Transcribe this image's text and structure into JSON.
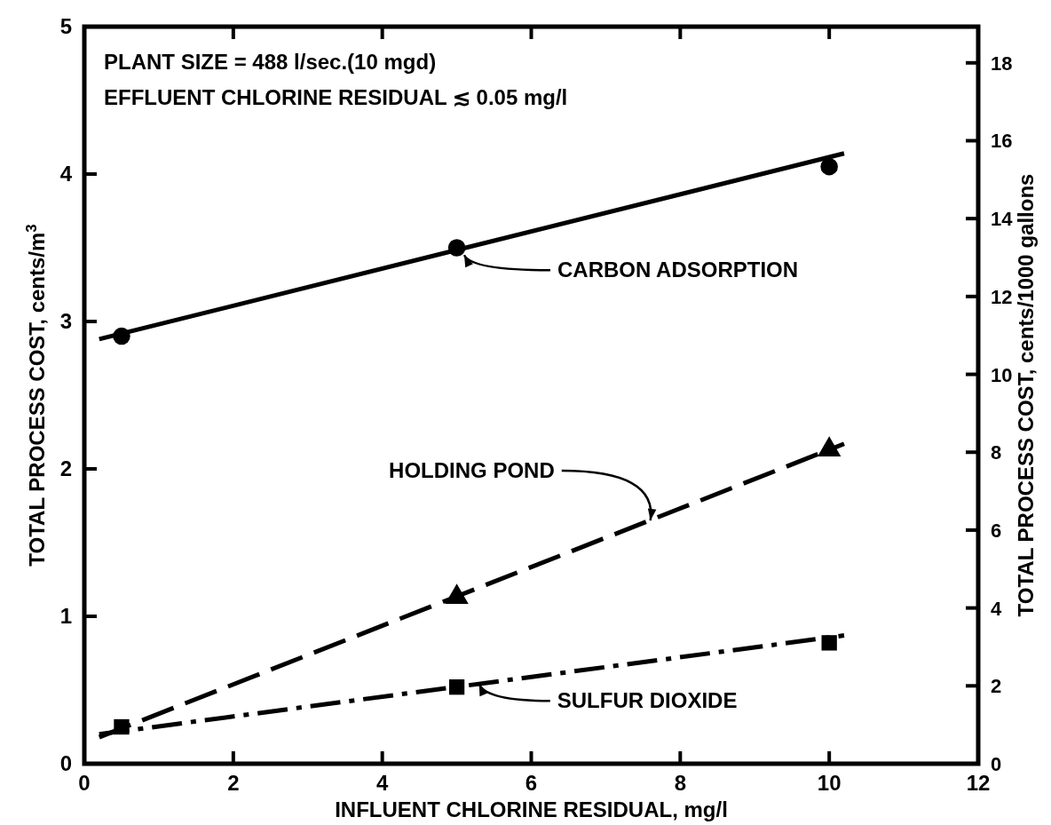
{
  "chart_data": {
    "type": "scatter",
    "xlabel": "INFLUENT CHLORINE RESIDUAL, mg/l",
    "ylabel": "TOTAL PROCESS COST, cents/m$^{3}$",
    "y2label": "TOTAL PROCESS COST, cents/1000 gallons",
    "xlim": [
      0,
      12
    ],
    "xticks": [
      0,
      2,
      4,
      6,
      8,
      10,
      12
    ],
    "ylim": [
      0,
      5
    ],
    "yticks": [
      0,
      1,
      2,
      3,
      4,
      5
    ],
    "y2lim": [
      0,
      18.93
    ],
    "y2ticks": [
      0,
      2,
      4,
      6,
      8,
      10,
      12,
      14,
      16,
      18
    ],
    "grid": false,
    "series": [
      {
        "type": "line",
        "color": "#000000",
        "x": [
          0.2,
          10.2
        ],
        "values": [
          2.88,
          4.14
        ],
        "line_style": "solid"
      },
      {
        "type": "line",
        "color": "#000000",
        "x": [
          0.2,
          10.2
        ],
        "values": [
          0.18,
          2.17
        ],
        "line_style": "dashed"
      },
      {
        "type": "line",
        "color": "#000000",
        "x": [
          0.2,
          10.2
        ],
        "values": [
          0.2,
          0.87
        ],
        "line_style": "dashdot"
      },
      {
        "color": "#000000",
        "x": [
          0.5,
          5,
          10
        ],
        "values": [
          2.9,
          3.5,
          4.05
        ],
        "marker": "circle"
      },
      {
        "color": "#000000",
        "x": [
          5,
          10
        ],
        "values": [
          1.13,
          2.13
        ],
        "marker": "triangle"
      },
      {
        "color": "#000000",
        "x": [
          0.5,
          5,
          10
        ],
        "values": [
          0.25,
          0.52,
          0.82
        ],
        "marker": "square"
      }
    ],
    "annotations": [
      "PLANT SIZE = 488 l/sec.(10 mgd)",
      "EFFLUENT CHLORINE RESIDUAL ≲ 0.05 mg/l",
      {
        "text": "CARBON ADSORPTION",
        "x": 5.1,
        "y": 3.45
      },
      {
        "text": "HOLDING POND",
        "x": 7.6,
        "y": 1.65
      },
      {
        "text": "SULFUR DIOXIDE",
        "x": 5.3,
        "y": 0.54
      }
    ]
  }
}
